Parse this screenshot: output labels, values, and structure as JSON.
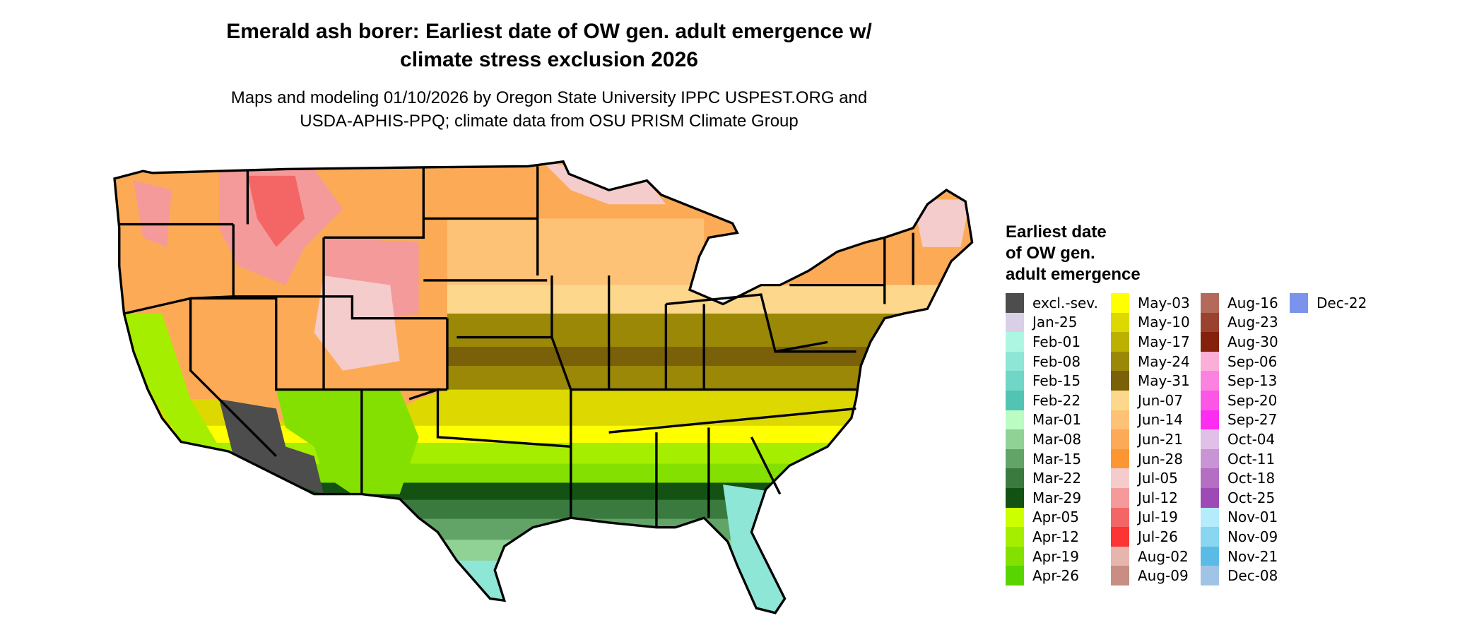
{
  "header": {
    "title_line1": "Emerald ash borer: Earliest date of OW gen. adult emergence w/",
    "title_line2": "climate stress exclusion 2026",
    "subtitle_line1": "Maps and modeling 01/10/2026 by Oregon State University IPPC USPEST.ORG and",
    "subtitle_line2": "USDA-APHIS-PPQ; climate data from OSU PRISM Climate Group"
  },
  "legend": {
    "title_lines": [
      "Earliest date",
      "of OW gen.",
      "adult emergence"
    ],
    "columns": [
      [
        {
          "label": "excl.-sev.",
          "color": "#4d4d4d"
        },
        {
          "label": "Jan-25",
          "color": "#d9d0e8"
        },
        {
          "label": "Feb-01",
          "color": "#adf7e2"
        },
        {
          "label": "Feb-08",
          "color": "#8ee6d6"
        },
        {
          "label": "Feb-15",
          "color": "#72d6c6"
        },
        {
          "label": "Feb-22",
          "color": "#52c4b4"
        },
        {
          "label": "Mar-01",
          "color": "#bbfcc2"
        },
        {
          "label": "Mar-08",
          "color": "#90d296"
        },
        {
          "label": "Mar-15",
          "color": "#62a468"
        },
        {
          "label": "Mar-22",
          "color": "#3a7a3e"
        },
        {
          "label": "Mar-29",
          "color": "#145214"
        },
        {
          "label": "Apr-05",
          "color": "#ccff00"
        },
        {
          "label": "Apr-12",
          "color": "#a6ee00"
        },
        {
          "label": "Apr-19",
          "color": "#84e000"
        },
        {
          "label": "Apr-26",
          "color": "#58d400"
        }
      ],
      [
        {
          "label": "May-03",
          "color": "#ffff00"
        },
        {
          "label": "May-10",
          "color": "#dcd800"
        },
        {
          "label": "May-17",
          "color": "#bcb000"
        },
        {
          "label": "May-24",
          "color": "#9a8806"
        },
        {
          "label": "May-31",
          "color": "#7a6008"
        },
        {
          "label": "Jun-07",
          "color": "#fdd88c"
        },
        {
          "label": "Jun-14",
          "color": "#fdc276"
        },
        {
          "label": "Jun-21",
          "color": "#fcaa56"
        },
        {
          "label": "Jun-28",
          "color": "#fc9632"
        },
        {
          "label": "Jul-05",
          "color": "#f4cccc"
        },
        {
          "label": "Jul-12",
          "color": "#f49a9a"
        },
        {
          "label": "Jul-19",
          "color": "#f46666"
        },
        {
          "label": "Jul-26",
          "color": "#fc3434"
        },
        {
          "label": "Aug-02",
          "color": "#e6b6ae"
        },
        {
          "label": "Aug-09",
          "color": "#c88e84"
        }
      ],
      [
        {
          "label": "Aug-16",
          "color": "#b46a5a"
        },
        {
          "label": "Aug-23",
          "color": "#9a4230"
        },
        {
          "label": "Aug-30",
          "color": "#84200c"
        },
        {
          "label": "Sep-06",
          "color": "#fcaed8"
        },
        {
          "label": "Sep-13",
          "color": "#fc82e0"
        },
        {
          "label": "Sep-20",
          "color": "#fc56e6"
        },
        {
          "label": "Sep-27",
          "color": "#fc2cf0"
        },
        {
          "label": "Oct-04",
          "color": "#e0c0e6"
        },
        {
          "label": "Oct-11",
          "color": "#c894d4"
        },
        {
          "label": "Oct-18",
          "color": "#b46ec4"
        },
        {
          "label": "Oct-25",
          "color": "#9e4ab6"
        },
        {
          "label": "Nov-01",
          "color": "#b4ecfc"
        },
        {
          "label": "Nov-09",
          "color": "#88d6f0"
        },
        {
          "label": "Nov-21",
          "color": "#5abce6"
        },
        {
          "label": "Dec-08",
          "color": "#a0c4e6"
        }
      ],
      [
        {
          "label": "Dec-22",
          "color": "#7a94ec"
        }
      ]
    ]
  }
}
